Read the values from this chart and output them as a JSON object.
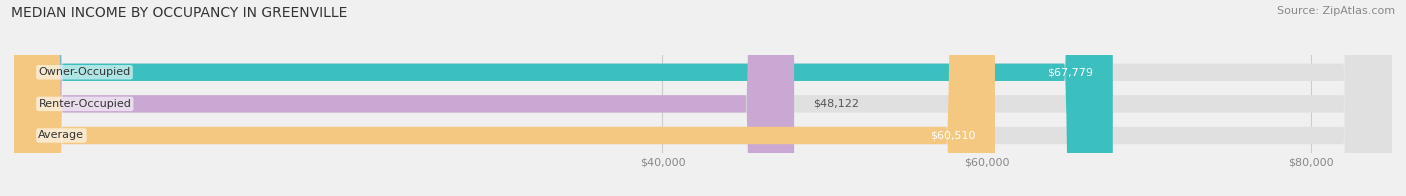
{
  "title": "MEDIAN INCOME BY OCCUPANCY IN GREENVILLE",
  "source": "Source: ZipAtlas.com",
  "categories": [
    "Owner-Occupied",
    "Renter-Occupied",
    "Average"
  ],
  "values": [
    67779,
    48122,
    60510
  ],
  "bar_colors": [
    "#3bbfbf",
    "#c9a8d4",
    "#f5c882"
  ],
  "value_labels": [
    "$67,779",
    "$48,122",
    "$60,510"
  ],
  "xlim": [
    0,
    85000
  ],
  "xticks": [
    40000,
    60000,
    80000
  ],
  "xtick_labels": [
    "$40,000",
    "$60,000",
    "$80,000"
  ],
  "title_fontsize": 10,
  "source_fontsize": 8,
  "label_fontsize": 8,
  "value_fontsize": 8,
  "background_color": "#f0f0f0",
  "bar_background_color": "#e0e0e0"
}
